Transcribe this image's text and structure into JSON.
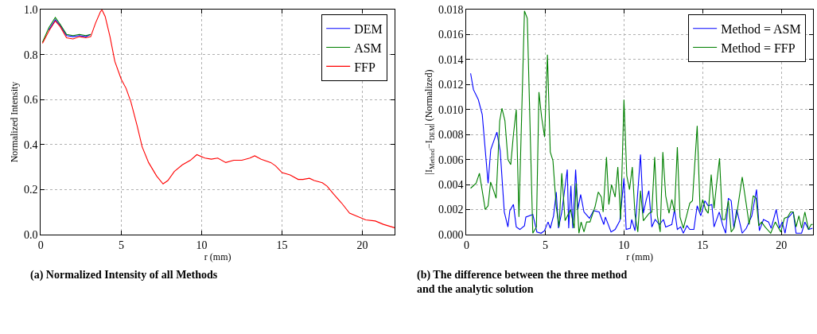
{
  "chart_data": [
    {
      "type": "line",
      "title": "(a) Normalized Intensity of all Methods",
      "xlabel": "r (mm)",
      "ylabel": "Normalized Intensity",
      "xlim": [
        0,
        22
      ],
      "ylim": [
        0,
        1.0
      ],
      "xticks": [
        0,
        5,
        10,
        15,
        20
      ],
      "yticks": [
        {
          "value": 0,
          "label": "0.0"
        },
        {
          "value": 0.2,
          "label": "0.2"
        },
        {
          "value": 0.4,
          "label": "0.4"
        },
        {
          "value": 0.6,
          "label": "0.6"
        },
        {
          "value": 0.8,
          "label": "0.8"
        },
        {
          "value": 1.0,
          "label": "1.0"
        }
      ],
      "grid": true,
      "legend": "top right",
      "line_style": "solid",
      "marker": "none",
      "x": [
        0.1,
        0.5,
        0.9,
        1.2,
        1.6,
        2.0,
        2.4,
        2.8,
        3.1,
        3.4,
        3.7,
        3.8,
        4.0,
        4.3,
        4.6,
        5.0,
        5.3,
        5.6,
        6.0,
        6.3,
        6.7,
        7.2,
        7.6,
        7.9,
        8.3,
        8.8,
        9.3,
        9.7,
        10.2,
        10.6,
        11.0,
        11.5,
        12.0,
        12.5,
        13.0,
        13.3,
        13.7,
        14.3,
        14.6,
        15.0,
        15.5,
        16.0,
        16.3,
        16.7,
        17.0,
        17.5,
        17.8,
        18.2,
        18.7,
        19.2,
        19.7,
        20.2,
        20.8,
        21.3,
        22.0
      ],
      "series": [
        {
          "name": "DEM",
          "color": "#0000ff",
          "values": [
            null,
            0.91,
            0.955,
            0.93,
            0.885,
            0.88,
            0.885,
            0.88,
            0.89,
            null,
            null,
            null,
            null,
            null,
            null,
            null,
            null,
            null,
            null,
            null,
            null,
            null,
            null,
            null,
            null,
            null,
            null,
            null,
            null,
            null,
            null,
            null,
            null,
            null,
            null,
            null,
            null,
            null,
            null,
            null,
            null,
            null,
            null,
            null,
            null,
            null,
            null,
            null,
            null,
            null,
            null,
            null,
            null,
            null,
            null
          ]
        },
        {
          "name": "ASM",
          "color": "#008000",
          "values": [
            0.855,
            0.92,
            0.965,
            0.935,
            0.89,
            0.885,
            0.89,
            0.885,
            0.89,
            null,
            null,
            null,
            null,
            null,
            null,
            null,
            null,
            null,
            null,
            null,
            null,
            null,
            null,
            null,
            null,
            null,
            null,
            null,
            null,
            null,
            null,
            null,
            null,
            null,
            null,
            null,
            null,
            null,
            null,
            null,
            null,
            null,
            null,
            null,
            null,
            null,
            null,
            null,
            null,
            null,
            null,
            null,
            null,
            null,
            null
          ]
        },
        {
          "name": "FFP",
          "color": "#ff0000",
          "values": [
            0.85,
            0.905,
            0.95,
            0.925,
            0.875,
            0.87,
            0.88,
            0.875,
            0.88,
            0.94,
            0.99,
            1.0,
            0.97,
            0.88,
            0.77,
            0.69,
            0.65,
            0.59,
            0.48,
            0.39,
            0.32,
            0.26,
            0.225,
            0.24,
            0.28,
            0.31,
            0.33,
            0.355,
            0.34,
            0.335,
            0.34,
            0.32,
            0.33,
            0.33,
            0.34,
            0.35,
            0.335,
            0.32,
            0.305,
            0.275,
            0.265,
            0.245,
            0.245,
            0.25,
            0.24,
            0.23,
            0.215,
            0.18,
            0.14,
            0.095,
            0.08,
            0.065,
            0.06,
            0.045,
            0.03
          ]
        }
      ]
    },
    {
      "type": "line",
      "title": "(b) The difference between the three method and the analytic solution",
      "xlabel": "r (mm)",
      "ylabel": "|I$_{Method}$−I$_{DEM}$| (Normalized)",
      "xlim": [
        0,
        22
      ],
      "ylim": [
        0,
        0.018
      ],
      "xticks": [
        0,
        5,
        10,
        15,
        20
      ],
      "yticks": [
        {
          "value": 0,
          "label": "0.000"
        },
        {
          "value": 0.002,
          "label": "0.002"
        },
        {
          "value": 0.004,
          "label": "0.004"
        },
        {
          "value": 0.006,
          "label": "0.006"
        },
        {
          "value": 0.008,
          "label": "0.008"
        },
        {
          "value": 0.01,
          "label": "0.010"
        },
        {
          "value": 0.012,
          "label": "0.012"
        },
        {
          "value": 0.014,
          "label": "0.014"
        },
        {
          "value": 0.016,
          "label": "0.016"
        },
        {
          "value": 0.018,
          "label": "0.018"
        }
      ],
      "grid": true,
      "legend": "top right",
      "line_style": "solid",
      "marker": "none",
      "series": [
        {
          "name": "Method = ASM",
          "color": "#0000ff",
          "x": [
            0.26,
            0.44,
            0.75,
            1.0,
            1.37,
            1.54,
            1.93,
            2.14,
            2.4,
            2.63,
            2.75,
            2.98,
            3.16,
            3.39,
            3.68,
            3.77,
            4.21,
            4.47,
            4.74,
            4.95,
            5.18,
            5.32,
            5.53,
            5.7,
            5.84,
            6.05,
            6.4,
            6.49,
            6.63,
            6.75,
            6.93,
            7.07,
            7.25,
            7.46,
            7.81,
            8.07,
            8.42,
            8.72,
            8.82,
            9.18,
            9.44,
            9.74,
            10.0,
            10.14,
            10.4,
            10.49,
            10.7,
            11.05,
            11.23,
            11.42,
            11.58,
            11.77,
            11.98,
            12.25,
            12.51,
            12.65,
            13.04,
            13.21,
            13.39,
            13.6,
            13.77,
            14.0,
            14.18,
            14.44,
            14.65,
            14.88,
            15.14,
            15.35,
            15.58,
            15.72,
            16.05,
            16.28,
            16.46,
            16.63,
            16.81,
            16.98,
            17.16,
            17.51,
            17.77,
            18.12,
            18.42,
            18.6,
            18.86,
            19.18,
            19.35,
            19.67,
            19.88,
            20.05,
            20.23,
            20.4,
            20.75,
            20.93,
            21.28,
            21.49,
            21.72,
            21.98
          ],
          "values": [
            0.0129,
            0.0116,
            0.0108,
            0.0096,
            0.0041,
            0.0068,
            0.0082,
            0.0067,
            0.0018,
            0.0006,
            0.0019,
            0.0024,
            0.0006,
            0.0004,
            0.0007,
            0.0014,
            0.0016,
            0.0002,
            0.0001,
            0.0003,
            0.001,
            0.0005,
            0.0015,
            0.0034,
            0.0005,
            0.0018,
            0.0052,
            0.0005,
            0.0039,
            0.0005,
            0.0052,
            0.002,
            0.0032,
            0.0018,
            0.0013,
            0.0019,
            0.0018,
            0.0008,
            0.0014,
            0.0002,
            0.0004,
            0.0011,
            0.0045,
            0.0004,
            0.0005,
            0.0012,
            0.0003,
            0.0064,
            0.0017,
            0.0028,
            0.0035,
            0.0006,
            0.0012,
            0.0008,
            0.0012,
            0.0006,
            0.0008,
            0.002,
            0.0004,
            0.0006,
            0.0001,
            0.0007,
            0.0004,
            0.0004,
            0.0023,
            0.0015,
            0.0027,
            0.0023,
            0.0024,
            0.0006,
            0.0018,
            0.0007,
            0.0001,
            0.0029,
            0.0027,
            0.0005,
            0.002,
            0.0001,
            0.0005,
            0.0015,
            0.0036,
            0.0003,
            0.0012,
            0.001,
            0.0005,
            0.002,
            0.0005,
            0.001,
            0.0001,
            0.0013,
            0.0018,
            0.0001,
            0.0001,
            0.001,
            0.0004,
            0.0005
          ]
        },
        {
          "name": "Method = FFP",
          "color": "#008000",
          "x": [
            0.26,
            0.61,
            0.82,
            1.19,
            1.37,
            1.53,
            1.7,
            1.88,
            2.11,
            2.25,
            2.44,
            2.63,
            2.81,
            2.98,
            3.16,
            3.33,
            3.68,
            3.86,
            4.21,
            4.44,
            4.6,
            4.77,
            4.96,
            5.14,
            5.32,
            5.49,
            5.7,
            5.88,
            6.05,
            6.26,
            6.61,
            6.84,
            6.96,
            7.14,
            7.28,
            7.46,
            7.63,
            7.84,
            8.16,
            8.37,
            8.56,
            8.68,
            8.89,
            9.04,
            9.21,
            9.44,
            9.61,
            9.79,
            10.0,
            10.18,
            10.35,
            10.53,
            10.7,
            10.88,
            11.05,
            11.23,
            11.6,
            11.77,
            11.95,
            12.12,
            12.3,
            12.47,
            12.65,
            12.86,
            13.04,
            13.21,
            13.39,
            13.56,
            13.77,
            14.0,
            14.18,
            14.35,
            14.65,
            14.84,
            15.0,
            15.18,
            15.35,
            15.54,
            15.72,
            15.89,
            16.07,
            16.25,
            16.42,
            16.63,
            16.81,
            16.98,
            17.16,
            17.51,
            17.77,
            17.95,
            18.21,
            18.39,
            18.56,
            18.74,
            18.96,
            19.32,
            19.61,
            19.96,
            20.19,
            20.4,
            20.58,
            20.75,
            20.93,
            21.11,
            21.28,
            21.49,
            21.72,
            21.89,
            22.0
          ],
          "values": [
            0.0037,
            0.0041,
            0.0049,
            0.002,
            0.0023,
            0.0042,
            0.0036,
            0.0029,
            0.0091,
            0.0101,
            0.0091,
            0.006,
            0.0056,
            0.008,
            0.01,
            0.0014,
            0.0179,
            0.0173,
            0.0001,
            0.0006,
            0.0114,
            0.0094,
            0.0078,
            0.0144,
            0.0066,
            0.0059,
            0.0022,
            0.0006,
            0.0049,
            0.0011,
            0.002,
            0.0005,
            0.0041,
            0.0001,
            0.001,
            0.0002,
            0.001,
            0.001,
            0.0022,
            0.0034,
            0.003,
            0.0018,
            0.0062,
            0.0024,
            0.004,
            0.003,
            0.0054,
            0.0012,
            0.0108,
            0.0047,
            0.0036,
            0.0054,
            0.0016,
            0.0002,
            0.0035,
            0.0011,
            0.0017,
            0.0018,
            0.0062,
            0.0015,
            0.0002,
            0.0066,
            0.0031,
            0.0017,
            0.0028,
            0.0018,
            0.007,
            0.0014,
            0.0005,
            0.0016,
            0.0025,
            0.0027,
            0.0087,
            0.0018,
            0.0028,
            0.002,
            0.0017,
            0.0048,
            0.0021,
            0.0041,
            0.0061,
            0.0012,
            0.0012,
            0.0027,
            0.0002,
            0.0005,
            0.0016,
            0.0046,
            0.0024,
            0.0008,
            0.0031,
            0.0029,
            0.0007,
            0.001,
            0.0006,
            0.0001,
            0.001,
            0.0002,
            0.0013,
            0.0014,
            0.0018,
            0.0018,
            0.0006,
            0.0015,
            0.0005,
            0.0018,
            0.0004,
            0.0008,
            0.0008
          ]
        }
      ]
    }
  ]
}
